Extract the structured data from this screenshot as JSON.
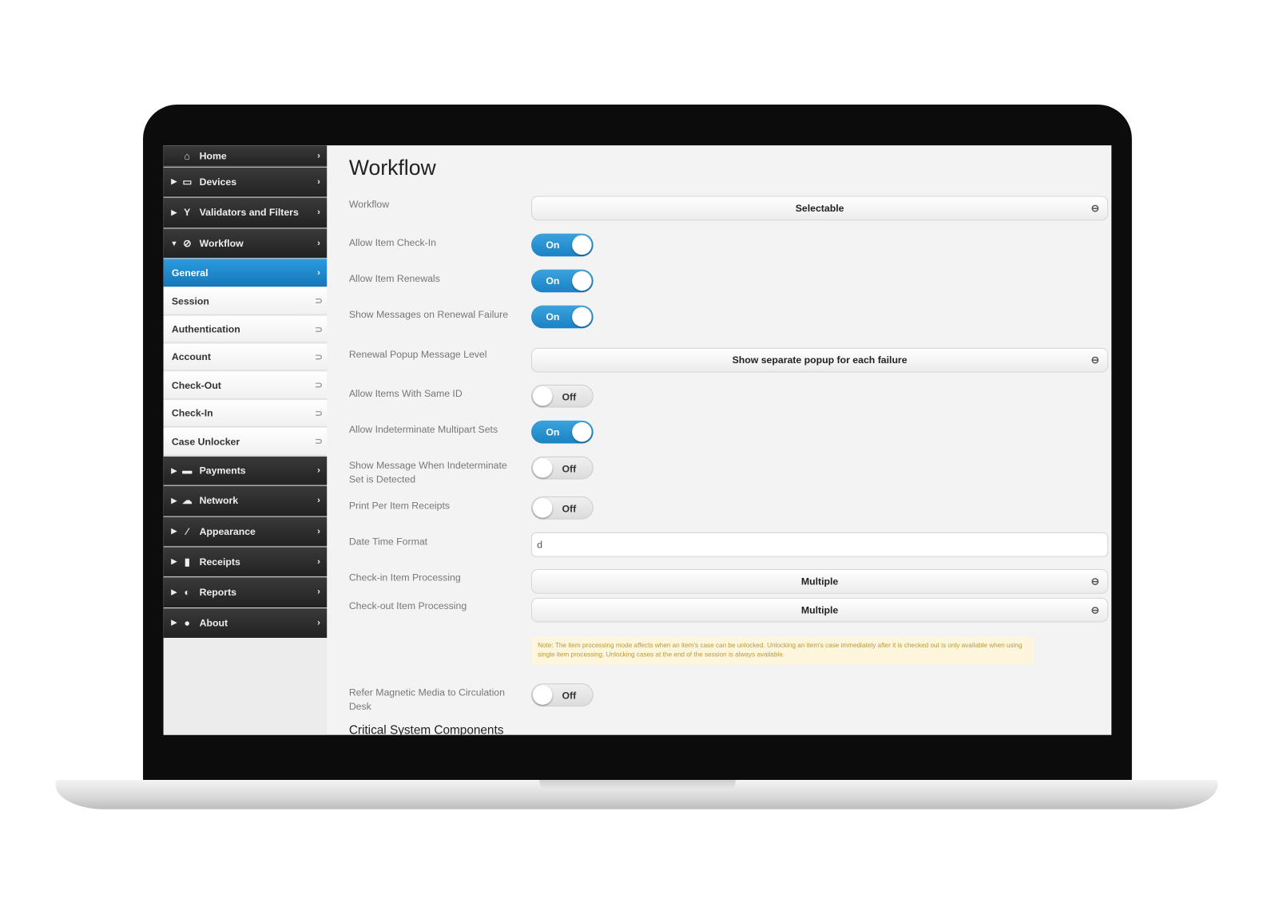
{
  "sidebar": {
    "items": [
      {
        "label": "Home",
        "icon": "home-icon",
        "glyph": "⌂",
        "type": "dark",
        "expand": ""
      },
      {
        "label": "Devices",
        "icon": "monitor-icon",
        "glyph": "▭",
        "type": "dark",
        "expand": "▶"
      },
      {
        "label": "Validators and Filters",
        "icon": "filter-icon",
        "glyph": "Y",
        "type": "dark",
        "expand": "▶"
      },
      {
        "label": "Workflow",
        "icon": "workflow-icon",
        "glyph": "⊘",
        "type": "dark",
        "expand": "▼"
      },
      {
        "label": "General",
        "type": "sel"
      },
      {
        "label": "Session",
        "type": "sub"
      },
      {
        "label": "Authentication",
        "type": "sub"
      },
      {
        "label": "Account",
        "type": "sub"
      },
      {
        "label": "Check-Out",
        "type": "sub"
      },
      {
        "label": "Check-In",
        "type": "sub"
      },
      {
        "label": "Case Unlocker",
        "type": "sub"
      },
      {
        "label": "Payments",
        "icon": "payments-icon",
        "glyph": "▬",
        "type": "dark",
        "expand": "▶"
      },
      {
        "label": "Network",
        "icon": "cloud-icon",
        "glyph": "☁",
        "type": "dark",
        "expand": "▶"
      },
      {
        "label": "Appearance",
        "icon": "brush-icon",
        "glyph": "⁄",
        "type": "dark",
        "expand": "▶"
      },
      {
        "label": "Receipts",
        "icon": "receipt-icon",
        "glyph": "▮",
        "type": "dark",
        "expand": "▶"
      },
      {
        "label": "Reports",
        "icon": "chart-icon",
        "glyph": "◐",
        "type": "dark",
        "expand": "▶"
      },
      {
        "label": "About",
        "icon": "info-icon",
        "glyph": "●",
        "type": "dark",
        "expand": "▶"
      }
    ]
  },
  "main": {
    "title": "Workflow",
    "fields": [
      {
        "label": "Workflow",
        "kind": "select",
        "value": "Selectable"
      },
      {
        "label": "Allow Item Check-In",
        "kind": "toggle",
        "value": "On"
      },
      {
        "label": "Allow Item Renewals",
        "kind": "toggle",
        "value": "On"
      },
      {
        "label": "Show Messages on Renewal Failure",
        "kind": "toggle",
        "value": "On"
      },
      {
        "label": "Renewal Popup Message Level",
        "kind": "select",
        "value": "Show separate popup for each failure"
      },
      {
        "label": "Allow Items With Same ID",
        "kind": "toggle",
        "value": "Off"
      },
      {
        "label": "Allow Indeterminate Multipart Sets",
        "kind": "toggle",
        "value": "On"
      },
      {
        "label": "Show Message When Indeterminate Set is Detected",
        "kind": "toggle",
        "value": "Off"
      },
      {
        "label": "Print Per Item Receipts",
        "kind": "toggle",
        "value": "Off"
      },
      {
        "label": "Date Time Format",
        "kind": "input",
        "value": "d"
      },
      {
        "label": "Check-in Item Processing",
        "kind": "select",
        "value": "Multiple"
      },
      {
        "label": "Check-out Item Processing",
        "kind": "select",
        "value": "Multiple"
      },
      {
        "label": "Refer Magnetic Media to Circulation Desk",
        "kind": "toggle",
        "value": "Off"
      }
    ],
    "note": "Note: The item processing mode affects when an item's case can be unlocked. Unlocking an item's case immediately after it is checked out is only available when using single item processing. Unlocking cases at the end of the session is always available.",
    "section_heading": "Critical System Components"
  },
  "colors": {
    "accent": "#1b82c4",
    "sidebar_dark": "#2a2a2a",
    "note_bg": "#fdf6dc"
  }
}
